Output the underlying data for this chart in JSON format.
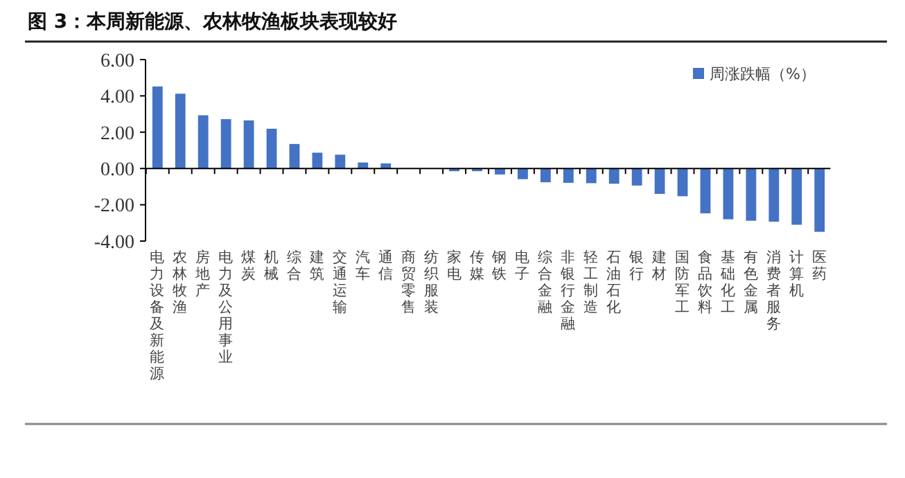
{
  "chart_data": {
    "type": "bar",
    "title": "图 3：本周新能源、农林牧渔板块表现较好",
    "categories": [
      "电力设备及新能源",
      "农林牧渔",
      "房地产",
      "电力及公用事业",
      "煤炭",
      "机械",
      "综合",
      "建筑",
      "交通运输",
      "汽车",
      "通信",
      "商贸零售",
      "纺织服装",
      "家电",
      "传媒",
      "钢铁",
      "电子",
      "综合金融",
      "非银行金融",
      "轻工制造",
      "石油石化",
      "银行",
      "建材",
      "国防军工",
      "食品饮料",
      "基础化工",
      "有色金属",
      "消费者服务",
      "计算机",
      "医药"
    ],
    "series": [
      {
        "name": "周涨跌幅（%）",
        "color": "#4472c4",
        "values": [
          4.52,
          4.12,
          2.93,
          2.72,
          2.65,
          2.19,
          1.35,
          0.87,
          0.76,
          0.33,
          0.28,
          null,
          null,
          -0.15,
          -0.15,
          -0.33,
          -0.59,
          -0.76,
          -0.79,
          -0.81,
          -0.84,
          -0.94,
          -1.4,
          -1.53,
          -2.47,
          -2.8,
          -2.88,
          -2.93,
          -3.1,
          -3.49
        ]
      }
    ],
    "ylim": [
      -4,
      6
    ],
    "yticks": [
      {
        "value": -4,
        "label": "-4.00"
      },
      {
        "value": -2,
        "label": "-2.00"
      },
      {
        "value": 0,
        "label": "0.00"
      },
      {
        "value": 2,
        "label": "2.00"
      },
      {
        "value": 4,
        "label": "4.00"
      },
      {
        "value": 6,
        "label": "6.00"
      }
    ],
    "grid": false,
    "legend": "top right"
  }
}
